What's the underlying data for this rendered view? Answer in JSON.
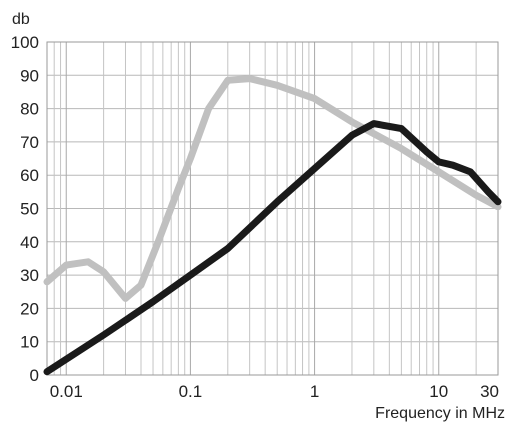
{
  "chart_data": {
    "type": "line",
    "title": "",
    "xlabel": "Frequency in MHz",
    "ylabel": "db",
    "x_scale": "log",
    "xlim": [
      0.007,
      30
    ],
    "ylim": [
      0,
      100
    ],
    "grid": true,
    "x_ticks": [
      {
        "value": 0.01,
        "label": "0.01"
      },
      {
        "value": 0.1,
        "label": "0.1"
      },
      {
        "value": 1,
        "label": "1"
      },
      {
        "value": 10,
        "label": "10"
      },
      {
        "value": 30,
        "label": "30"
      }
    ],
    "y_ticks": [
      0,
      10,
      20,
      30,
      40,
      50,
      60,
      70,
      80,
      90,
      100
    ],
    "series": [
      {
        "color": "#c0c0c0",
        "points": [
          {
            "x": 0.007,
            "y": 28
          },
          {
            "x": 0.01,
            "y": 33
          },
          {
            "x": 0.015,
            "y": 34
          },
          {
            "x": 0.02,
            "y": 31
          },
          {
            "x": 0.03,
            "y": 23
          },
          {
            "x": 0.04,
            "y": 27
          },
          {
            "x": 0.055,
            "y": 40
          },
          {
            "x": 0.08,
            "y": 56
          },
          {
            "x": 0.1,
            "y": 65
          },
          {
            "x": 0.14,
            "y": 80
          },
          {
            "x": 0.2,
            "y": 88.5
          },
          {
            "x": 0.3,
            "y": 89
          },
          {
            "x": 0.5,
            "y": 87
          },
          {
            "x": 1,
            "y": 83
          },
          {
            "x": 2,
            "y": 76
          },
          {
            "x": 5,
            "y": 68
          },
          {
            "x": 10,
            "y": 61
          },
          {
            "x": 20,
            "y": 54
          },
          {
            "x": 30,
            "y": 50.5
          }
        ]
      },
      {
        "color": "#1a1a1a",
        "points": [
          {
            "x": 0.007,
            "y": 1
          },
          {
            "x": 0.02,
            "y": 12
          },
          {
            "x": 0.05,
            "y": 22
          },
          {
            "x": 0.1,
            "y": 30
          },
          {
            "x": 0.2,
            "y": 38
          },
          {
            "x": 0.5,
            "y": 52
          },
          {
            "x": 1,
            "y": 62
          },
          {
            "x": 2,
            "y": 72
          },
          {
            "x": 3,
            "y": 75.5
          },
          {
            "x": 5,
            "y": 74
          },
          {
            "x": 8,
            "y": 67
          },
          {
            "x": 10,
            "y": 64
          },
          {
            "x": 13,
            "y": 63
          },
          {
            "x": 18,
            "y": 61
          },
          {
            "x": 25,
            "y": 55
          },
          {
            "x": 30,
            "y": 52
          }
        ]
      }
    ]
  }
}
